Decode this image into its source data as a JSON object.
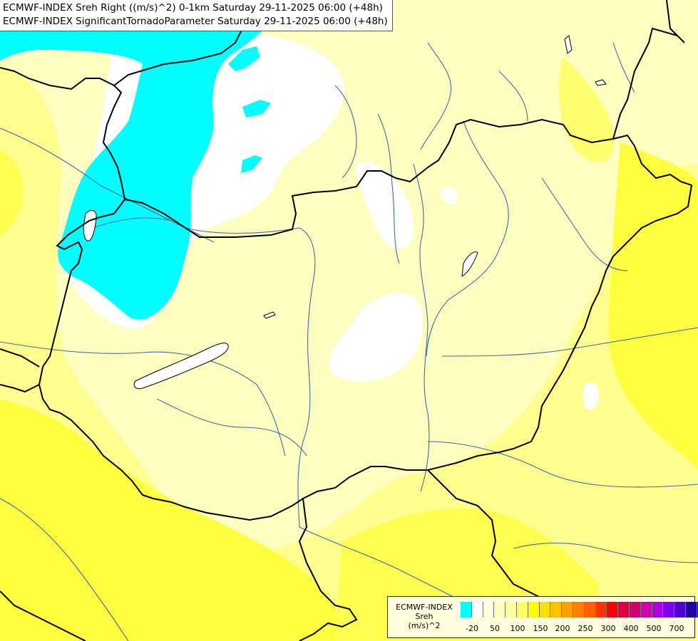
{
  "titles": [
    "ECMWF-INDEX Sreh Right ((m/s)^2) 0-1km Saturday 29-11-2025 06:00 (+48h)",
    "ECMWF-INDEX SignificantTornadoParameter Saturday 29-11-2025 06:00 (+48h)"
  ],
  "legend": {
    "title_lines": [
      "ECMWF-INDEX",
      "Sreh",
      "(m/s)^2"
    ],
    "colors": [
      "#00ffff",
      "#ffffff",
      "#ffffe0",
      "#ffffc0",
      "#ffffa0",
      "#ffff60",
      "#ffff00",
      "#ffe000",
      "#ffc000",
      "#ffa000",
      "#ff8000",
      "#ff6000",
      "#ff3000",
      "#ff0000",
      "#e0003c",
      "#d00070",
      "#d000b0",
      "#b000e0",
      "#8000f0",
      "#5000d0",
      "#2000a0",
      "#000080"
    ],
    "tick_labels": [
      "-20",
      "50",
      "100",
      "150",
      "200",
      "250",
      "300",
      "400",
      "500",
      "700"
    ]
  },
  "colors": {
    "cyan": "#00ffff",
    "white": "#ffffff",
    "pale_yellow": "#ffffc0",
    "light_yellow": "#ffff90",
    "yellow": "#ffff40",
    "border_black": "#000000",
    "river_blue": "#3a6ea5"
  }
}
